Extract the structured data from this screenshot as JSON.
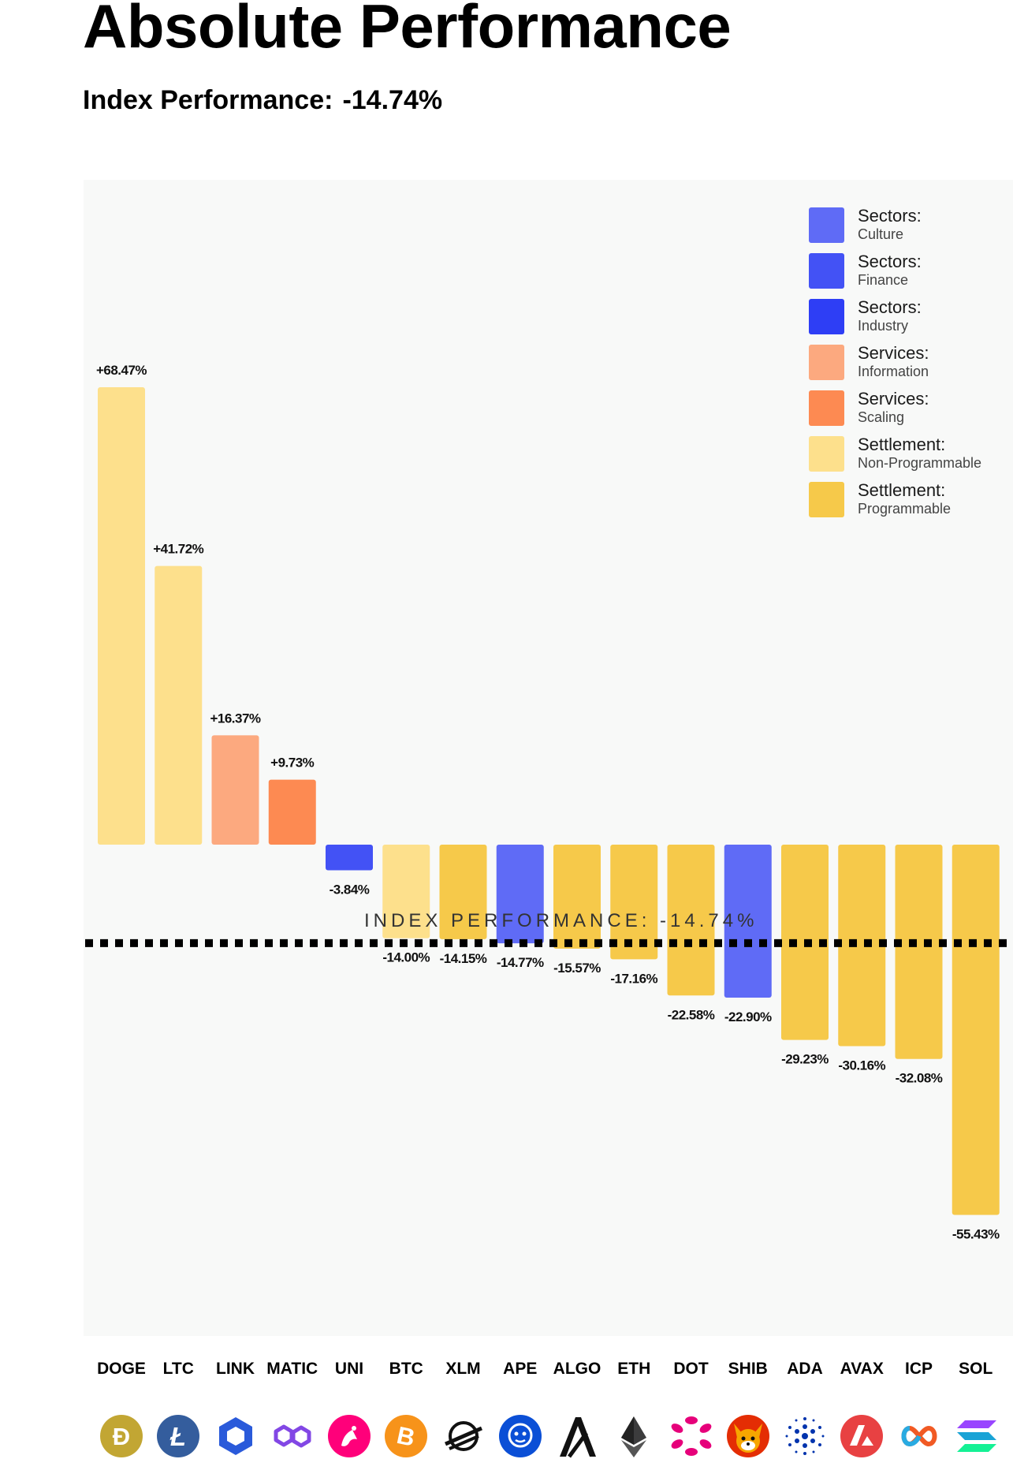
{
  "header": {
    "title": "Absolute Performance",
    "subtitle_label": "Index Performance:",
    "subtitle_value": "-14.74%"
  },
  "chart_data": {
    "type": "bar",
    "categories": [
      "DOGE",
      "LTC",
      "LINK",
      "MATIC",
      "UNI",
      "BTC",
      "XLM",
      "APE",
      "ALGO",
      "ETH",
      "DOT",
      "SHIB",
      "ADA",
      "AVAX",
      "ICP",
      "SOL"
    ],
    "values": [
      68.47,
      41.72,
      16.37,
      9.73,
      -3.84,
      -14.0,
      -14.15,
      -14.77,
      -15.57,
      -17.16,
      -22.58,
      -22.9,
      -29.23,
      -30.16,
      -32.08,
      -55.43
    ],
    "value_labels": [
      "+68.47%",
      "+41.72%",
      "+16.37%",
      "+9.73%",
      "-3.84%",
      "-14.00%",
      "-14.15%",
      "-14.77%",
      "-15.57%",
      "-17.16%",
      "-22.58%",
      "-22.90%",
      "-29.23%",
      "-30.16%",
      "-32.08%",
      "-55.43%"
    ],
    "bar_groups": [
      5,
      5,
      3,
      4,
      1,
      5,
      6,
      0,
      6,
      6,
      6,
      0,
      6,
      6,
      6,
      6
    ],
    "reference_line": {
      "value": -14.74,
      "label": "INDEX PERFORMANCE: -14.74%",
      "style": "dotted"
    },
    "legend": [
      {
        "group": "Sectors:",
        "sub": "Culture",
        "color": "#5f6bf6"
      },
      {
        "group": "Sectors:",
        "sub": "Finance",
        "color": "#4352f5"
      },
      {
        "group": "Sectors:",
        "sub": "Industry",
        "color": "#2e3ef5"
      },
      {
        "group": "Services:",
        "sub": "Information",
        "color": "#fca97f"
      },
      {
        "group": "Services:",
        "sub": "Scaling",
        "color": "#fd8a52"
      },
      {
        "group": "Settlement:",
        "sub": "Non-Programmable",
        "color": "#fde08c"
      },
      {
        "group": "Settlement:",
        "sub": "Programmable",
        "color": "#f6c94a"
      }
    ],
    "legend_position": "top-right",
    "grid": false
  },
  "axis": {
    "labels": [
      "DOGE",
      "LTC",
      "LINK",
      "MATIC",
      "UNI",
      "BTC",
      "XLM",
      "APE",
      "ALGO",
      "ETH",
      "DOT",
      "SHIB",
      "ADA",
      "AVAX",
      "ICP",
      "SOL"
    ],
    "icons": [
      "doge-icon",
      "litecoin-icon",
      "chainlink-icon",
      "polygon-icon",
      "uniswap-icon",
      "bitcoin-icon",
      "stellar-icon",
      "apecoin-icon",
      "algorand-icon",
      "ethereum-icon",
      "polkadot-icon",
      "shiba-inu-icon",
      "cardano-icon",
      "avalanche-icon",
      "internet-computer-icon",
      "solana-icon"
    ]
  }
}
